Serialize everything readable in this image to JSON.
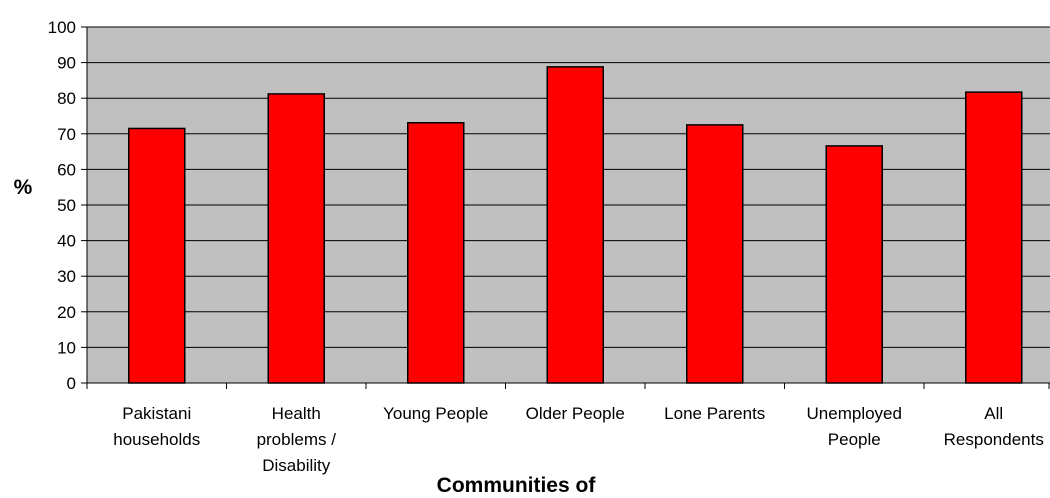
{
  "chart_data": {
    "type": "bar",
    "categories": [
      [
        "Pakistani",
        "households"
      ],
      [
        "Health",
        "problems /",
        "Disability"
      ],
      [
        "Young People"
      ],
      [
        "Older People"
      ],
      [
        "Lone Parents"
      ],
      [
        "Unemployed",
        "People"
      ],
      [
        "All",
        "Respondents"
      ]
    ],
    "values": [
      71.5,
      81.2,
      73.1,
      88.8,
      72.5,
      66.6,
      81.7
    ],
    "title": "",
    "xlabel": "Communities of",
    "ylabel": "%",
    "ylim": [
      0,
      100
    ],
    "yticks": [
      0,
      10,
      20,
      30,
      40,
      50,
      60,
      70,
      80,
      90,
      100
    ],
    "grid": true,
    "legend": "none",
    "colors": {
      "bar_fill": "#ff0000",
      "bar_stroke": "#000000",
      "plot_background": "#c0c0c0",
      "gridline": "#000000"
    }
  }
}
